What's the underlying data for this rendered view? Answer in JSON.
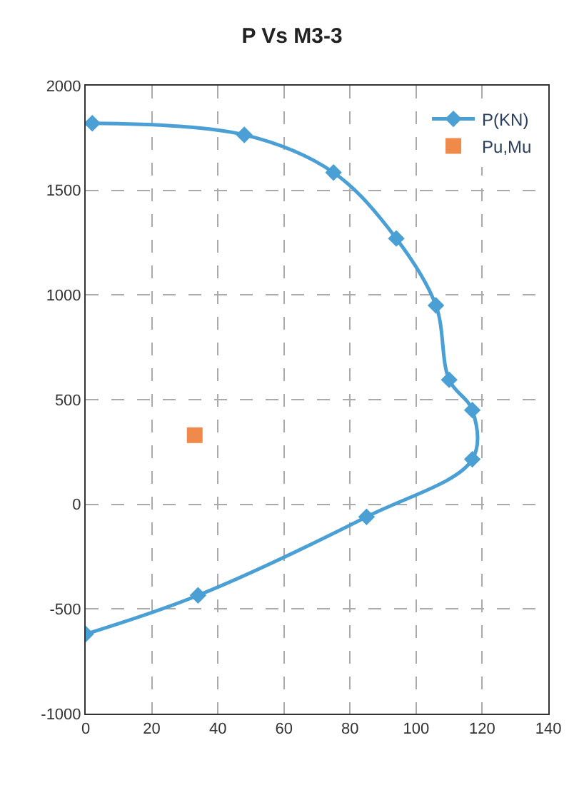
{
  "chart_data": {
    "type": "line",
    "title": "P Vs M3-3",
    "x": [
      2,
      48,
      75,
      94,
      106,
      110,
      117,
      117,
      85,
      34,
      0
    ],
    "series": [
      {
        "name": "P(KN)",
        "color": "#4a9fd4",
        "marker": "diamond",
        "values": [
          1820,
          1765,
          1585,
          1270,
          950,
          595,
          450,
          215,
          -60,
          -435,
          -620
        ]
      },
      {
        "name": "Pu,Mu",
        "type": "scatter",
        "color": "#f08a4b",
        "marker": "square",
        "x": [
          33
        ],
        "values": [
          330
        ]
      }
    ],
    "xlim": [
      0,
      140
    ],
    "xticks": [
      0,
      20,
      40,
      60,
      80,
      100,
      120,
      140
    ],
    "ylim": [
      -1000,
      2000
    ],
    "yticks": [
      -1000,
      -500,
      0,
      500,
      1000,
      1500,
      2000
    ],
    "grid": true,
    "legend": "top right"
  }
}
